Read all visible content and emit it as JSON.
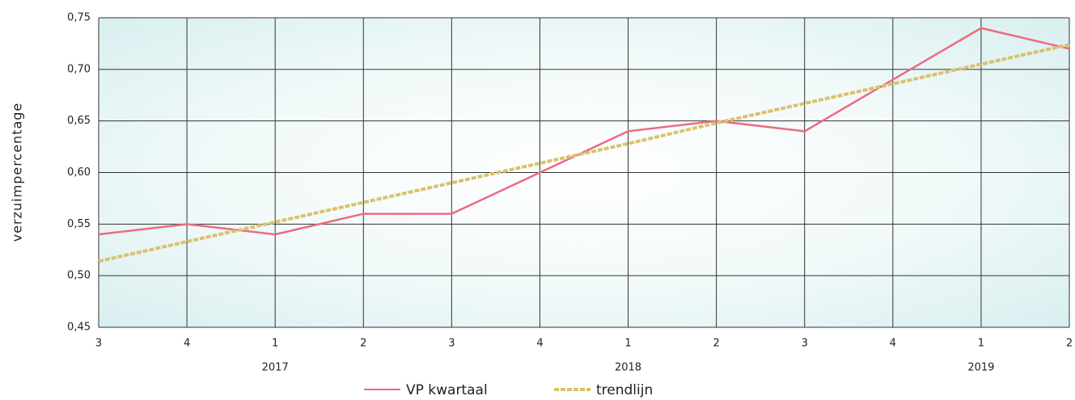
{
  "chart_data": {
    "type": "line",
    "y_label": "verzuimpercentage",
    "categories": [
      "3",
      "4",
      "1",
      "2",
      "3",
      "4",
      "1",
      "2",
      "3",
      "4",
      "1",
      "2"
    ],
    "years": [
      null,
      null,
      "2017",
      null,
      null,
      null,
      "2018",
      null,
      null,
      null,
      "2019",
      null
    ],
    "ylim": [
      0.45,
      0.75
    ],
    "yticks": [
      {
        "value": 0.45,
        "label": "0,45"
      },
      {
        "value": 0.5,
        "label": "0,50"
      },
      {
        "value": 0.55,
        "label": "0,55"
      },
      {
        "value": 0.6,
        "label": "0,60"
      },
      {
        "value": 0.65,
        "label": "0,65"
      },
      {
        "value": 0.7,
        "label": "0,70"
      },
      {
        "value": 0.75,
        "label": "0,75"
      }
    ],
    "grid": true,
    "legend": "bottom",
    "series": [
      {
        "name": "VP kwartaal",
        "color": "#ec6a82",
        "dashed": false,
        "values": [
          0.54,
          0.55,
          0.54,
          0.56,
          0.56,
          0.6,
          0.64,
          0.65,
          0.64,
          0.69,
          0.74,
          0.72
        ]
      },
      {
        "name": "trendlijn",
        "color": "#d8c26c",
        "dashed": true,
        "values": [
          0.514,
          0.533,
          0.552,
          0.571,
          0.59,
          0.609,
          0.628,
          0.648,
          0.667,
          0.686,
          0.705,
          0.724
        ]
      }
    ]
  }
}
